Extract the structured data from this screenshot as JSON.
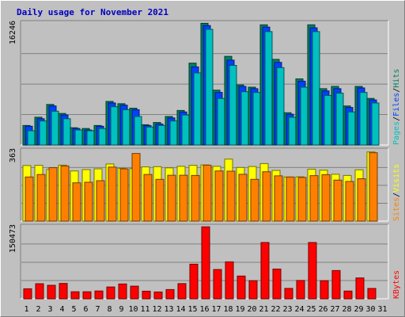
{
  "title": "Daily usage for November 2021",
  "colors": {
    "background": "#c0c0c0",
    "plot_background": "#c0c0c0",
    "title": "#0000c0",
    "gridline": "#808080",
    "pages": "#00c0c0",
    "files": "#0040ff",
    "hits": "#008060",
    "visits": "#ffff00",
    "sites": "#ff8000",
    "kbytes": "#ff0000",
    "weekend_day_label": "#00805c",
    "weekday_label": "#000000"
  },
  "legend": {
    "top": [
      "Pages",
      "Files",
      "Hits"
    ],
    "middle": [
      "Sites",
      "Visits"
    ],
    "bottom": [
      "KBytes"
    ],
    "separator": "/"
  },
  "chart_data": [
    {
      "type": "bar",
      "name": "hits-files-pages",
      "y_max_label": "16246",
      "ylim": [
        0,
        16246
      ],
      "grid": true,
      "categories": [
        "1",
        "2",
        "3",
        "4",
        "5",
        "6",
        "7",
        "8",
        "9",
        "10",
        "11",
        "12",
        "13",
        "14",
        "15",
        "16",
        "17",
        "18",
        "19",
        "20",
        "21",
        "22",
        "23",
        "24",
        "25",
        "26",
        "27",
        "28",
        "29",
        "30",
        "31"
      ],
      "series": [
        {
          "name": "Hits",
          "values": [
            2600,
            3700,
            5400,
            4200,
            2300,
            2200,
            2600,
            5800,
            5500,
            4900,
            2700,
            3000,
            3800,
            4600,
            10900,
            16200,
            7300,
            11800,
            8000,
            7700,
            16000,
            11400,
            4300,
            8800,
            16000,
            7500,
            7800,
            5200,
            7800,
            6200,
            0
          ]
        },
        {
          "name": "Files",
          "values": [
            2500,
            3500,
            5200,
            4000,
            2200,
            2000,
            2500,
            5600,
            5300,
            4700,
            2600,
            2800,
            3600,
            4400,
            10400,
            15900,
            7000,
            11300,
            7800,
            7500,
            15700,
            11000,
            4100,
            8500,
            15600,
            7200,
            7500,
            5000,
            7600,
            6000,
            0
          ]
        },
        {
          "name": "Pages",
          "values": [
            1900,
            3200,
            4500,
            3500,
            2000,
            1900,
            2200,
            5100,
            4700,
            3800,
            2400,
            2600,
            3200,
            4000,
            9600,
            15400,
            6200,
            10600,
            7100,
            7000,
            15100,
            10300,
            3700,
            7700,
            15100,
            6600,
            6900,
            4400,
            7000,
            5600,
            0
          ]
        }
      ]
    },
    {
      "type": "bar",
      "name": "visits-sites",
      "y_max_label": "363",
      "ylim": [
        0,
        363
      ],
      "grid": true,
      "categories": [
        "1",
        "2",
        "3",
        "4",
        "5",
        "6",
        "7",
        "8",
        "9",
        "10",
        "11",
        "12",
        "13",
        "14",
        "15",
        "16",
        "17",
        "18",
        "19",
        "20",
        "21",
        "22",
        "23",
        "24",
        "25",
        "26",
        "27",
        "28",
        "29",
        "30",
        "31"
      ],
      "series": [
        {
          "name": "Visits",
          "values": [
            286,
            287,
            266,
            288,
            258,
            265,
            269,
            294,
            272,
            270,
            279,
            280,
            274,
            282,
            287,
            289,
            282,
            319,
            276,
            281,
            296,
            261,
            227,
            228,
            267,
            262,
            241,
            235,
            264,
            356,
            0
          ]
        },
        {
          "name": "Sites",
          "values": [
            227,
            240,
            275,
            284,
            197,
            200,
            208,
            278,
            269,
            348,
            240,
            215,
            236,
            236,
            235,
            288,
            258,
            257,
            241,
            215,
            254,
            233,
            227,
            225,
            234,
            239,
            211,
            204,
            218,
            352,
            0
          ]
        }
      ]
    },
    {
      "type": "bar",
      "name": "kbytes",
      "y_max_label": "150473",
      "ylim": [
        0,
        150473
      ],
      "grid": true,
      "categories": [
        "1",
        "2",
        "3",
        "4",
        "5",
        "6",
        "7",
        "8",
        "9",
        "10",
        "11",
        "12",
        "13",
        "14",
        "15",
        "16",
        "17",
        "18",
        "19",
        "20",
        "21",
        "22",
        "23",
        "24",
        "25",
        "26",
        "27",
        "28",
        "29",
        "30",
        "31"
      ],
      "series": [
        {
          "name": "KBytes",
          "values": [
            20800,
            31400,
            28100,
            32000,
            14600,
            14600,
            16200,
            24600,
            30900,
            26300,
            15800,
            14200,
            19200,
            31600,
            72100,
            150100,
            61000,
            77000,
            47400,
            37700,
            117400,
            62000,
            21600,
            38200,
            117400,
            37700,
            58900,
            16100,
            43400,
            21500,
            0
          ]
        }
      ]
    }
  ],
  "day_labels": [
    "1",
    "2",
    "3",
    "4",
    "5",
    "6",
    "7",
    "8",
    "9",
    "10",
    "11",
    "12",
    "13",
    "14",
    "15",
    "16",
    "17",
    "18",
    "19",
    "20",
    "21",
    "22",
    "23",
    "24",
    "25",
    "26",
    "27",
    "28",
    "29",
    "30",
    "31"
  ],
  "weekend_days": [
    6,
    7,
    13,
    14,
    20,
    21,
    27,
    28
  ]
}
